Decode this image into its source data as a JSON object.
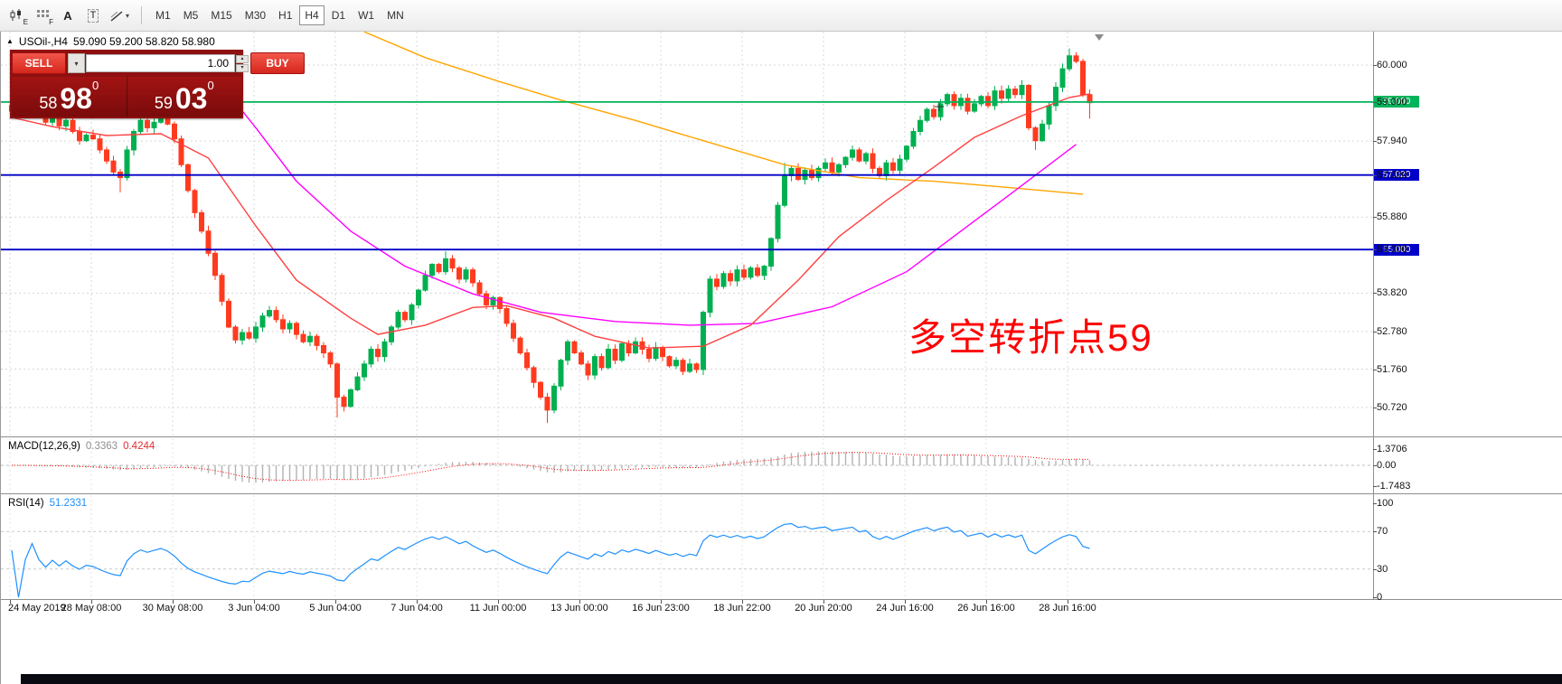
{
  "toolbar": {
    "icon_buttons": [
      {
        "name": "chart-mode-icon",
        "glyph": "E"
      },
      {
        "name": "indicator-grid-icon",
        "glyph": "F"
      },
      {
        "name": "text-annotation-icon",
        "glyph": "A"
      },
      {
        "name": "text-box-icon",
        "glyph": "T"
      },
      {
        "name": "line-style-icon",
        "glyph": "▾"
      }
    ],
    "timeframes": [
      {
        "label": "M1"
      },
      {
        "label": "M5"
      },
      {
        "label": "M15"
      },
      {
        "label": "M30"
      },
      {
        "label": "H1"
      },
      {
        "label": "H4",
        "active": true
      },
      {
        "label": "D1"
      },
      {
        "label": "W1"
      },
      {
        "label": "MN"
      }
    ]
  },
  "chart_header": {
    "symbol": "USOil-,H4",
    "ohlc": "59.090 59.200 58.820 58.980"
  },
  "trade_panel": {
    "sell_label": "SELL",
    "buy_label": "BUY",
    "volume": "1.00",
    "icons": {
      "dropdown": "▾",
      "up": "▴",
      "down": "▾"
    },
    "bid": {
      "prefix": "58",
      "big": "98",
      "sup": "0"
    },
    "ask": {
      "prefix": "59",
      "big": "03",
      "sup": "0"
    }
  },
  "annotation": {
    "text": "多空转折点59"
  },
  "macd_panel": {
    "label": "MACD(12,26,9)",
    "value1": "0.3363",
    "value2": "0.4244"
  },
  "rsi_panel": {
    "label": "RSI(14)",
    "value": "51.2331"
  },
  "chart_data": {
    "type": "candlestick",
    "symbol": "USOil-",
    "timeframe": "H4",
    "last_ohlc": {
      "open": "59.090",
      "high": "59.200",
      "low": "58.820",
      "close": "58.980"
    },
    "up_color": "#00B050",
    "down_color": "#FF3B1F",
    "first_open": 58.75,
    "closes": [
      58.9,
      58.6,
      58.8,
      59.0,
      58.7,
      58.45,
      58.6,
      58.35,
      58.5,
      58.2,
      57.95,
      58.1,
      58.0,
      57.7,
      57.4,
      57.1,
      56.95,
      57.7,
      58.2,
      58.5,
      58.3,
      58.45,
      58.6,
      58.4,
      58.0,
      57.3,
      56.6,
      56.0,
      55.5,
      54.9,
      54.3,
      53.6,
      52.9,
      52.55,
      52.75,
      52.6,
      52.9,
      53.2,
      53.35,
      53.1,
      52.85,
      53.0,
      52.7,
      52.5,
      52.65,
      52.4,
      52.2,
      51.9,
      51.0,
      50.75,
      51.2,
      51.55,
      51.9,
      52.3,
      52.1,
      52.5,
      52.9,
      53.3,
      53.1,
      53.5,
      53.9,
      54.3,
      54.6,
      54.4,
      54.75,
      54.5,
      54.2,
      54.45,
      54.1,
      53.8,
      53.5,
      53.7,
      53.4,
      53.0,
      52.6,
      52.2,
      51.8,
      51.4,
      51.0,
      50.65,
      51.3,
      52.0,
      52.5,
      52.2,
      51.9,
      51.6,
      52.1,
      51.8,
      52.3,
      52.0,
      52.45,
      52.2,
      52.5,
      52.3,
      52.05,
      52.35,
      52.1,
      51.85,
      52.0,
      51.7,
      51.9,
      51.75,
      53.3,
      54.2,
      54.0,
      54.35,
      54.15,
      54.45,
      54.25,
      54.5,
      54.3,
      54.55,
      55.3,
      56.2,
      57.0,
      57.2,
      56.9,
      57.15,
      56.95,
      57.2,
      57.35,
      57.1,
      57.3,
      57.5,
      57.7,
      57.4,
      57.6,
      57.2,
      57.0,
      57.35,
      57.15,
      57.45,
      57.8,
      58.2,
      58.5,
      58.8,
      58.6,
      58.95,
      59.2,
      58.9,
      59.1,
      58.75,
      58.95,
      59.15,
      58.9,
      59.3,
      59.1,
      59.35,
      59.2,
      59.45,
      58.3,
      57.95,
      58.4,
      58.9,
      59.4,
      59.9,
      60.25,
      60.1,
      59.2,
      58.98
    ],
    "wick_overrides": {
      "3": {
        "high": 59.65
      },
      "16": {
        "low": 56.55
      },
      "48": {
        "low": 50.45
      },
      "64": {
        "high": 54.95
      },
      "79": {
        "low": 50.3
      },
      "102": {
        "low": 51.6
      },
      "114": {
        "high": 57.35
      },
      "151": {
        "low": 57.7
      },
      "156": {
        "high": 60.45
      },
      "157": {
        "high": 60.35
      },
      "159": {
        "low": 58.55
      }
    },
    "price_axis_ticks": [
      {
        "label": "60.000",
        "price": 60.0
      },
      {
        "label": "59.000",
        "price": 59.0
      },
      {
        "label": "57.940",
        "price": 57.94
      },
      {
        "label": "57.020",
        "price": 57.02
      },
      {
        "label": "55.880",
        "price": 55.88
      },
      {
        "label": "55.000",
        "price": 55.0
      },
      {
        "label": "53.820",
        "price": 53.82
      },
      {
        "label": "52.780",
        "price": 52.78
      },
      {
        "label": "51.760",
        "price": 51.76
      },
      {
        "label": "50.720",
        "price": 50.72
      }
    ],
    "h_levels": [
      {
        "price": 59.0,
        "color": "#00B45A",
        "label": "59.000"
      },
      {
        "price": 57.02,
        "color": "#0000C8",
        "label": "57.020"
      },
      {
        "price": 55.0,
        "color": "#0000C8",
        "label": "55.000"
      }
    ],
    "moving_averages": [
      {
        "name": "ma-slow",
        "color": "#FFA500",
        "points": [
          [
            52,
            60.9
          ],
          [
            61,
            60.2
          ],
          [
            72,
            59.55
          ],
          [
            81,
            59.05
          ],
          [
            92,
            58.5
          ],
          [
            102,
            57.95
          ],
          [
            114,
            57.3
          ],
          [
            125,
            56.95
          ],
          [
            136,
            56.85
          ],
          [
            146,
            56.7
          ],
          [
            158,
            56.5
          ]
        ]
      },
      {
        "name": "ma-medium",
        "color": "#FF00FF",
        "points": [
          [
            29,
            59.9
          ],
          [
            36,
            58.3
          ],
          [
            42,
            56.85
          ],
          [
            50,
            55.5
          ],
          [
            58,
            54.55
          ],
          [
            68,
            53.8
          ],
          [
            78,
            53.3
          ],
          [
            89,
            53.05
          ],
          [
            100,
            52.95
          ],
          [
            110,
            53.0
          ],
          [
            121,
            53.45
          ],
          [
            132,
            54.4
          ],
          [
            140,
            55.5
          ],
          [
            148,
            56.6
          ],
          [
            157,
            57.85
          ]
        ]
      },
      {
        "name": "ma-fast",
        "color": "#FF4040",
        "points": [
          [
            0,
            58.58
          ],
          [
            6,
            58.33
          ],
          [
            14,
            58.09
          ],
          [
            22,
            58.14
          ],
          [
            29,
            57.48
          ],
          [
            36,
            55.64
          ],
          [
            42,
            54.17
          ],
          [
            50,
            53.14
          ],
          [
            54,
            52.7
          ],
          [
            61,
            52.95
          ],
          [
            68,
            53.43
          ],
          [
            73,
            53.48
          ],
          [
            80,
            53.14
          ],
          [
            86,
            52.65
          ],
          [
            94,
            52.33
          ],
          [
            102,
            52.38
          ],
          [
            109,
            52.95
          ],
          [
            116,
            54.17
          ],
          [
            122,
            55.35
          ],
          [
            129,
            56.33
          ],
          [
            136,
            57.23
          ],
          [
            142,
            58.04
          ],
          [
            149,
            58.63
          ],
          [
            156,
            59.12
          ],
          [
            159,
            59.22
          ]
        ]
      }
    ],
    "time_axis_ticks": [
      {
        "label": "24 May 2019"
      },
      {
        "label": "28 May 08:00"
      },
      {
        "label": "30 May 08:00"
      },
      {
        "label": "3 Jun 04:00"
      },
      {
        "label": "5 Jun 04:00"
      },
      {
        "label": "7 Jun 04:00"
      },
      {
        "label": "11 Jun 00:00"
      },
      {
        "label": "13 Jun 00:00"
      },
      {
        "label": "16 Jun 23:00"
      },
      {
        "label": "18 Jun 22:00"
      },
      {
        "label": "20 Jun 20:00"
      },
      {
        "label": "24 Jun 16:00"
      },
      {
        "label": "26 Jun 16:00"
      },
      {
        "label": "28 Jun 16:00"
      }
    ],
    "macd": {
      "label": "MACD(12,26,9)",
      "fast": 12,
      "slow": 26,
      "signal": 9,
      "current_values": [
        0.3363,
        0.4244
      ],
      "axis_ticks": [
        {
          "label": "1.3706",
          "value": 1.3706
        },
        {
          "label": "0.00",
          "value": 0
        },
        {
          "label": "-1.7483",
          "value": -1.7483
        }
      ],
      "histogram_color": "#b2b2b2",
      "signal_color": "#FF0000"
    },
    "rsi": {
      "label": "RSI(14)",
      "period": 14,
      "current_value": 51.2331,
      "axis_ticks": [
        {
          "label": "100",
          "value": 100
        },
        {
          "label": "70",
          "value": 70
        },
        {
          "label": "30",
          "value": 30
        },
        {
          "label": "0",
          "value": 0
        }
      ],
      "color": "#1E90FF",
      "levels": [
        70,
        30
      ]
    }
  }
}
